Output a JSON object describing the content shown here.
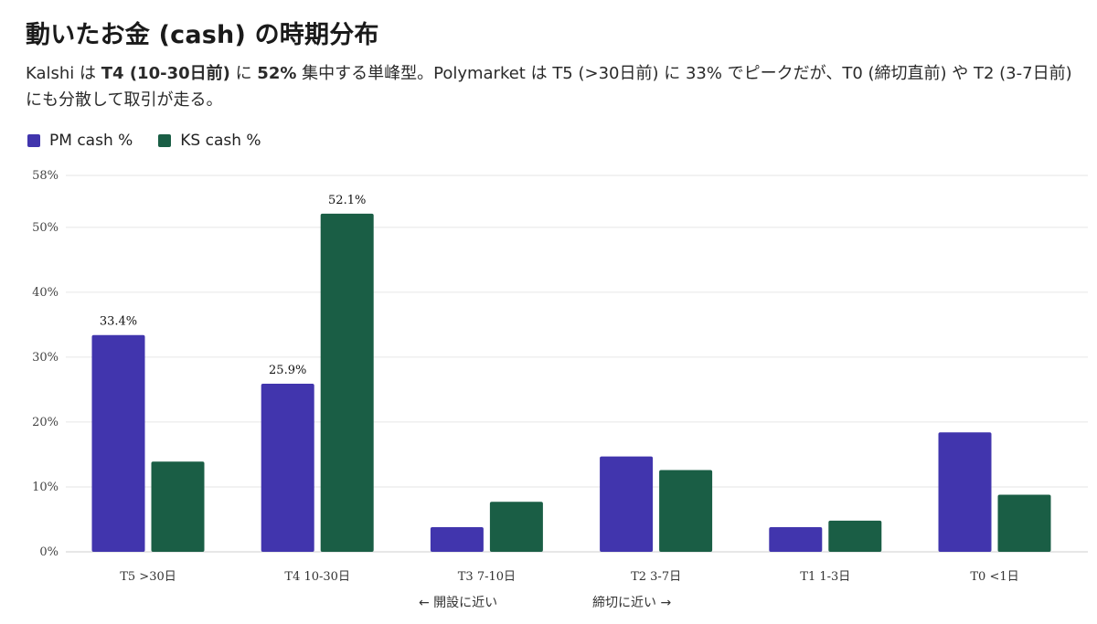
{
  "chart_data": {
    "type": "bar",
    "title": "動いたお金 (cash) の時期分布",
    "subtitle_segments": [
      {
        "text": "Kalshi は ",
        "bold": false
      },
      {
        "text": "T4 (10-30日前)",
        "bold": true
      },
      {
        "text": " に ",
        "bold": false
      },
      {
        "text": "52%",
        "bold": true
      },
      {
        "text": " 集中する単峰型。Polymarket は T5 (>30日前) に 33% でピークだが、T0 (締切直前) や T2 (3-7日前) にも分散して取引が走る。",
        "bold": false
      }
    ],
    "categories": [
      "T5 >30日",
      "T4 10-30日",
      "T3 7-10日",
      "T2 3-7日",
      "T1 1-3日",
      "T0 <1日"
    ],
    "series": [
      {
        "name": "PM cash %",
        "color": "#4135ad",
        "values": [
          33.4,
          25.9,
          3.8,
          14.7,
          3.8,
          18.4
        ]
      },
      {
        "name": "KS cash %",
        "color": "#1a5e45",
        "values": [
          13.9,
          52.1,
          7.7,
          12.6,
          4.8,
          8.8
        ]
      }
    ],
    "data_labels": [
      {
        "series": 0,
        "category": 0,
        "text": "33.4%"
      },
      {
        "series": 0,
        "category": 1,
        "text": "25.9%"
      },
      {
        "series": 1,
        "category": 1,
        "text": "52.1%"
      }
    ],
    "y_ticks": [
      {
        "value": 0,
        "label": "0%"
      },
      {
        "value": 10,
        "label": "10%"
      },
      {
        "value": 20,
        "label": "20%"
      },
      {
        "value": 30,
        "label": "30%"
      },
      {
        "value": 40,
        "label": "40%"
      },
      {
        "value": 50,
        "label": "50%"
      },
      {
        "value": 58,
        "label": "58%"
      }
    ],
    "ylim": [
      0,
      58
    ],
    "grid": true,
    "legend_position": "top-left",
    "direction_labels": {
      "left": "← 開設に近い",
      "right": "締切に近い →"
    }
  }
}
